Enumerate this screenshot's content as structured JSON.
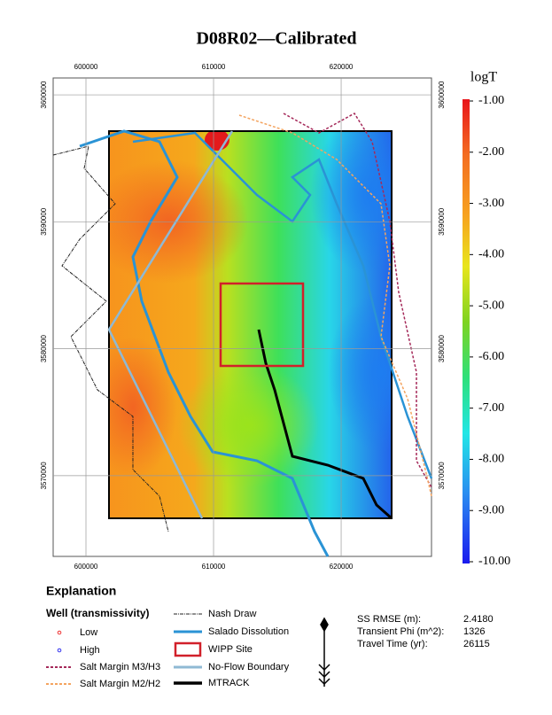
{
  "map": {
    "title": "D08R02—Calibrated",
    "xlim": [
      597430,
      627080
    ],
    "ylim": [
      3563640,
      3601330
    ],
    "xticks": [
      600000,
      610000,
      620000
    ],
    "yticks": [
      3570000,
      3580000,
      3590000,
      3600000
    ],
    "colorbar": {
      "title": "logT",
      "lim": [
        -10,
        -1
      ],
      "ticks": [
        {
          "value": -1,
          "label": "-1.00"
        },
        {
          "value": -2,
          "label": "-2.00"
        },
        {
          "value": -3,
          "label": "-3.00"
        },
        {
          "value": -4,
          "label": "-4.00"
        },
        {
          "value": -5,
          "label": "-5.00"
        },
        {
          "value": -6,
          "label": "-6.00"
        },
        {
          "value": -7,
          "label": "-7.00"
        },
        {
          "value": -8,
          "label": "-8.00"
        },
        {
          "value": -9,
          "label": "-9.00"
        },
        {
          "value": -10,
          "label": "-10.00"
        }
      ]
    }
  },
  "legend": {
    "title": "Explanation",
    "well_title": "Well (transmissivity)",
    "items": [
      "Low",
      "High",
      "Salt Margin M3/H3",
      "Salt Margin M2/H2",
      "Nash Draw",
      "Salado Dissolution",
      "WIPP Site",
      "No-Flow Boundary",
      "MTRACK"
    ]
  },
  "stats": {
    "labels": [
      "SS RMSE (m):",
      "Transient Phi (m^2):",
      "Travel Time (yr):"
    ],
    "values": [
      "2.4180",
      "1326",
      "26115"
    ]
  }
}
